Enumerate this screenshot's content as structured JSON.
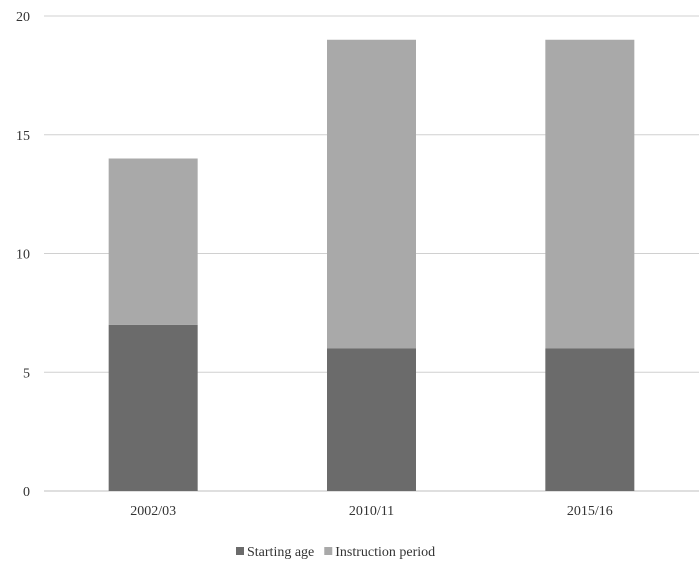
{
  "chart_data": {
    "type": "bar",
    "stacked": true,
    "categories": [
      "2002/03",
      "2010/11",
      "2015/16"
    ],
    "series": [
      {
        "name": "Starting age",
        "values": [
          7,
          6,
          6
        ],
        "color": "#6b6b6b"
      },
      {
        "name": "Instruction period",
        "values": [
          7,
          13,
          13
        ],
        "color": "#a9a9a9"
      }
    ],
    "y_ticks": [
      "0",
      "5",
      "10",
      "15",
      "20"
    ],
    "ylim": [
      0,
      20
    ],
    "grid": true,
    "legend_position": "bottom",
    "gridline_color": "#d0d0d0",
    "axis_color": "#bfbfbf"
  }
}
